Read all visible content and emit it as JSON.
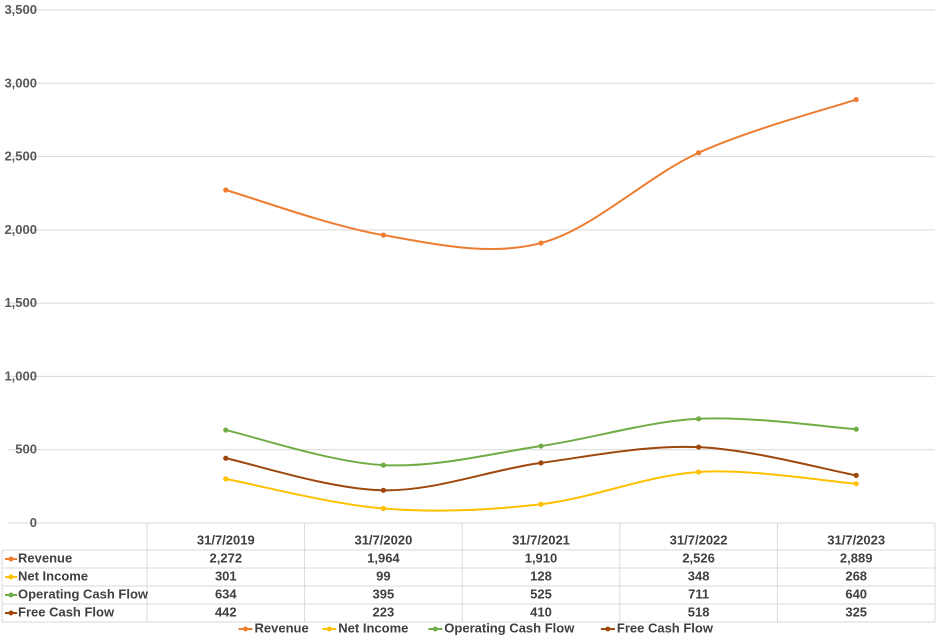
{
  "chart_data": {
    "type": "line",
    "categories": [
      "31/7/2019",
      "31/7/2020",
      "31/7/2021",
      "31/7/2022",
      "31/7/2023"
    ],
    "series": [
      {
        "name": "Revenue",
        "color": "#ED7D31",
        "values": [
          2272,
          1964,
          1910,
          2526,
          2889
        ],
        "labels": [
          "2,272",
          "1,964",
          "1,910",
          "2,526",
          "2,889"
        ]
      },
      {
        "name": "Net Income",
        "color": "#FFC000",
        "values": [
          301,
          99,
          128,
          348,
          268
        ],
        "labels": [
          "301",
          "99",
          "128",
          "348",
          "268"
        ]
      },
      {
        "name": "Operating Cash Flow",
        "color": "#70AD47",
        "values": [
          634,
          395,
          525,
          711,
          640
        ],
        "labels": [
          "634",
          "395",
          "525",
          "711",
          "640"
        ]
      },
      {
        "name": "Free Cash Flow",
        "color": "#9E480E",
        "values": [
          442,
          223,
          410,
          518,
          325
        ],
        "labels": [
          "442",
          "223",
          "410",
          "518",
          "325"
        ]
      }
    ],
    "yticks": [
      "0",
      "500",
      "1,000",
      "1,500",
      "2,000",
      "2,500",
      "3,000",
      "3,500"
    ],
    "ylim": [
      0,
      3500
    ],
    "grid": true,
    "smooth": true,
    "legend_position": "bottom",
    "data_table": true
  }
}
